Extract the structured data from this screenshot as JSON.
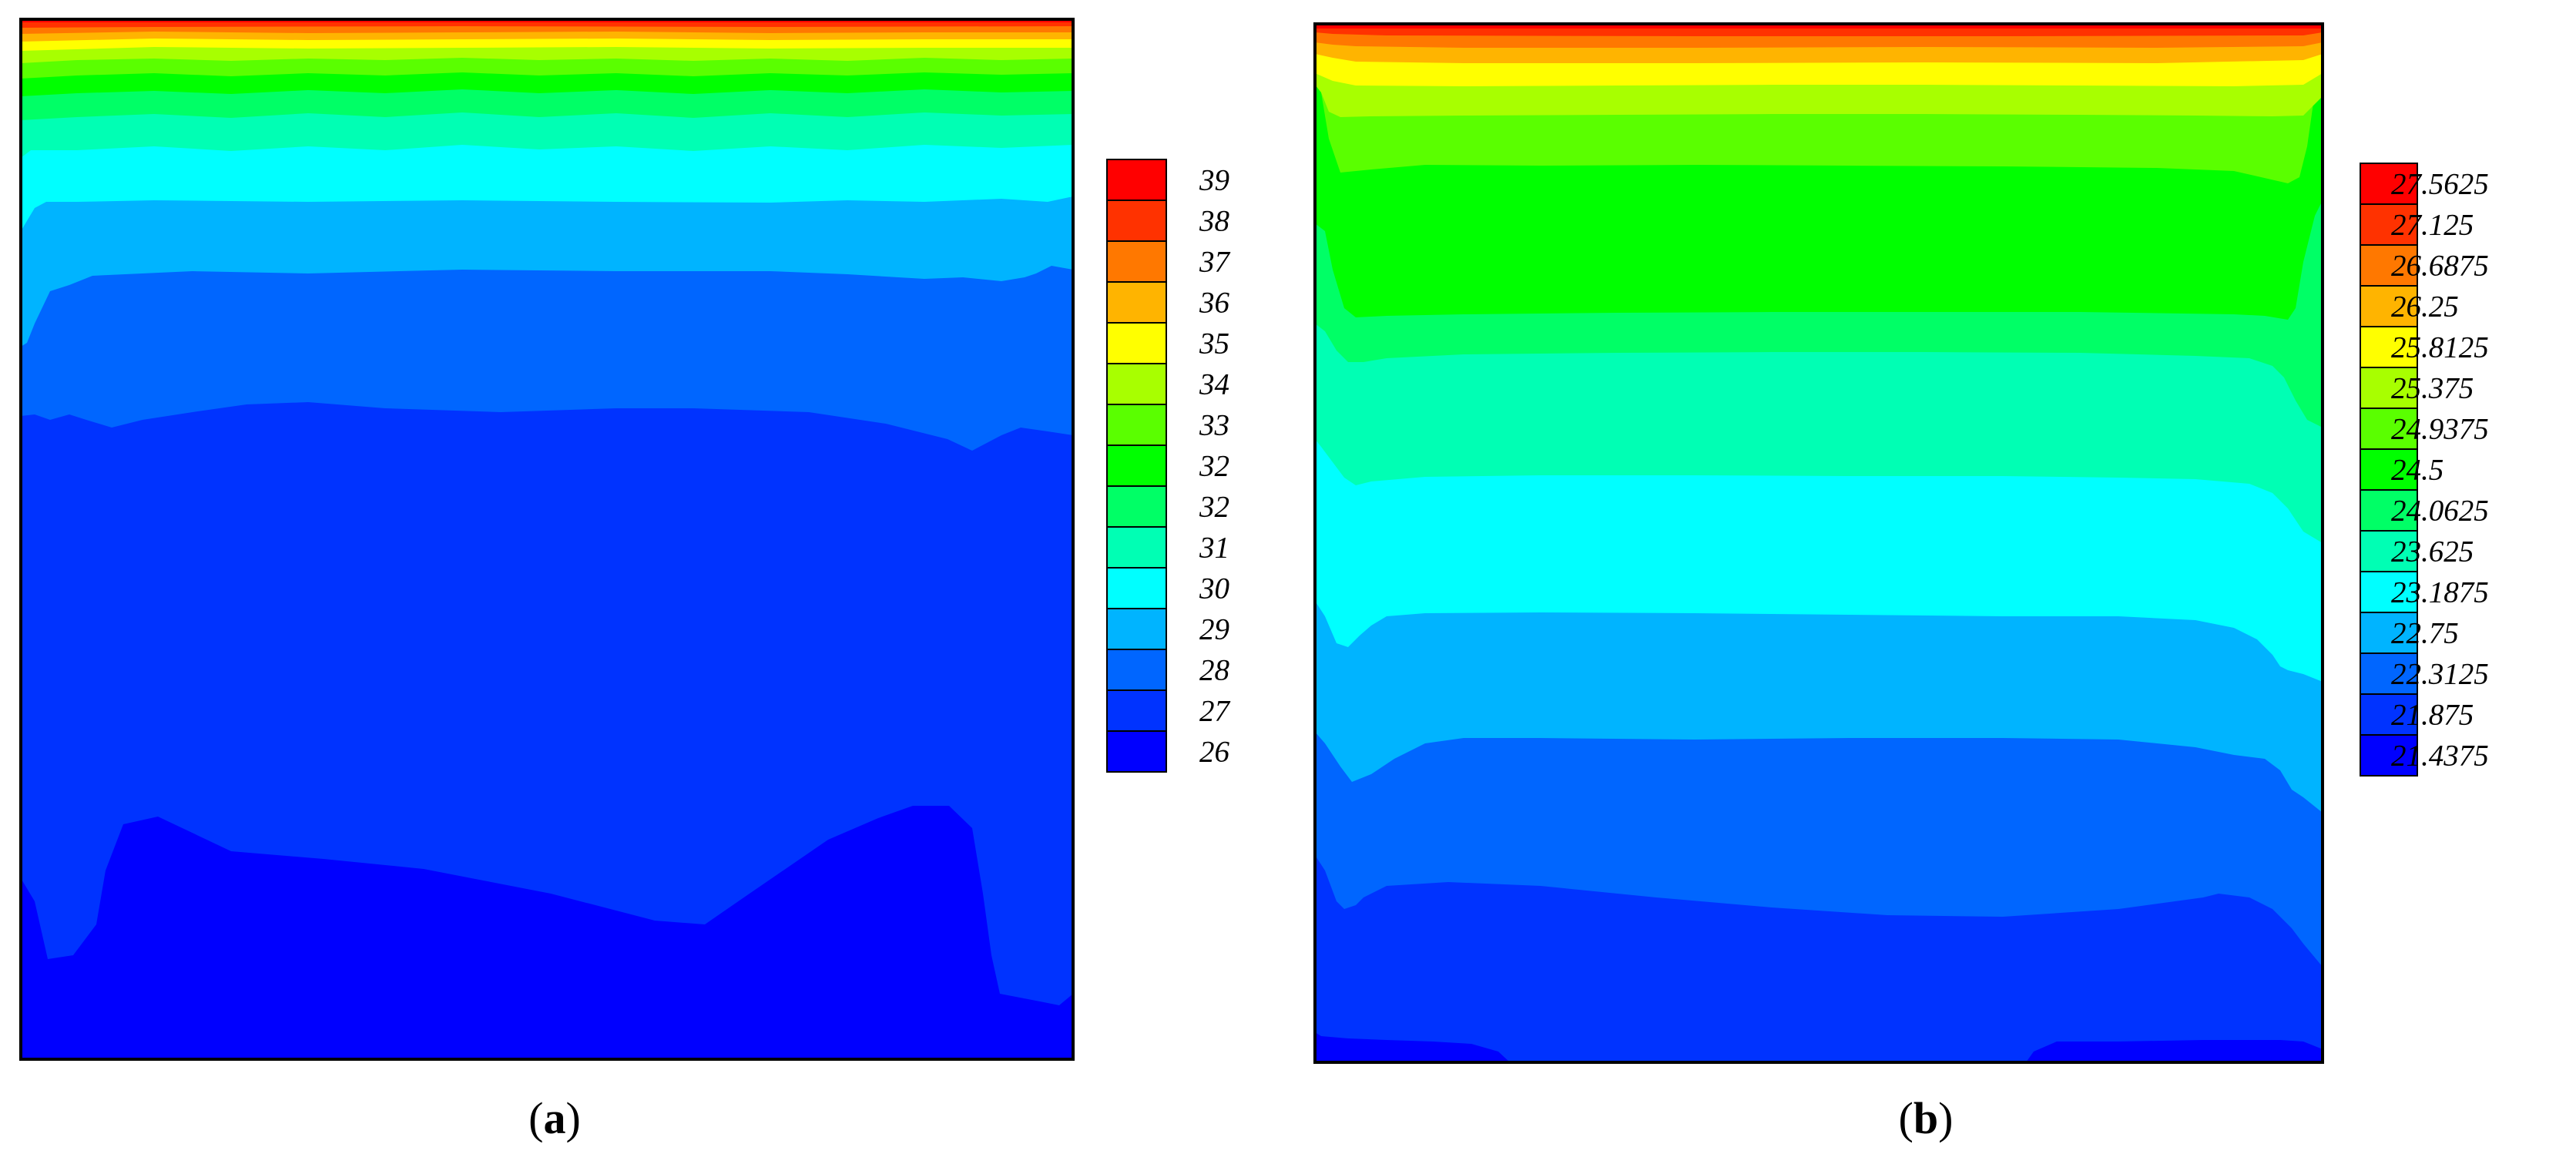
{
  "chart_data": [
    {
      "type": "contour",
      "caption": "a",
      "colormap": [
        "#0000ff",
        "#0033ff",
        "#0066ff",
        "#00b4ff",
        "#00ffff",
        "#00ffb4",
        "#00ff66",
        "#00ff00",
        "#5aff00",
        "#a8ff00",
        "#ffff00",
        "#ffb400",
        "#ff7800",
        "#ff3200",
        "#ff0000"
      ],
      "legend": {
        "placement": "right",
        "labels": [
          "39",
          "38",
          "37",
          "36",
          "35",
          "34",
          "33",
          "32",
          "32",
          "31",
          "30",
          "29",
          "28",
          "27",
          "26"
        ]
      },
      "grid": false
    },
    {
      "type": "contour",
      "caption": "b",
      "colormap": [
        "#0000ff",
        "#0033ff",
        "#0066ff",
        "#00b4ff",
        "#00ffff",
        "#00ffb4",
        "#00ff66",
        "#00ff00",
        "#5aff00",
        "#a8ff00",
        "#ffff00",
        "#ffb400",
        "#ff7800",
        "#ff3200",
        "#ff0000"
      ],
      "legend": {
        "placement": "right",
        "labels": [
          "27.5625",
          "27.125",
          "26.6875",
          "26.25",
          "25.8125",
          "25.375",
          "24.9375",
          "24.5",
          "24.0625",
          "23.625",
          "23.1875",
          "22.75",
          "22.3125",
          "21.875",
          "21.4375"
        ]
      },
      "grid": false
    }
  ],
  "captions": {
    "a": {
      "open": "(",
      "letter": "a",
      "close": ")"
    },
    "b": {
      "open": "(",
      "letter": "b",
      "close": ")"
    }
  }
}
